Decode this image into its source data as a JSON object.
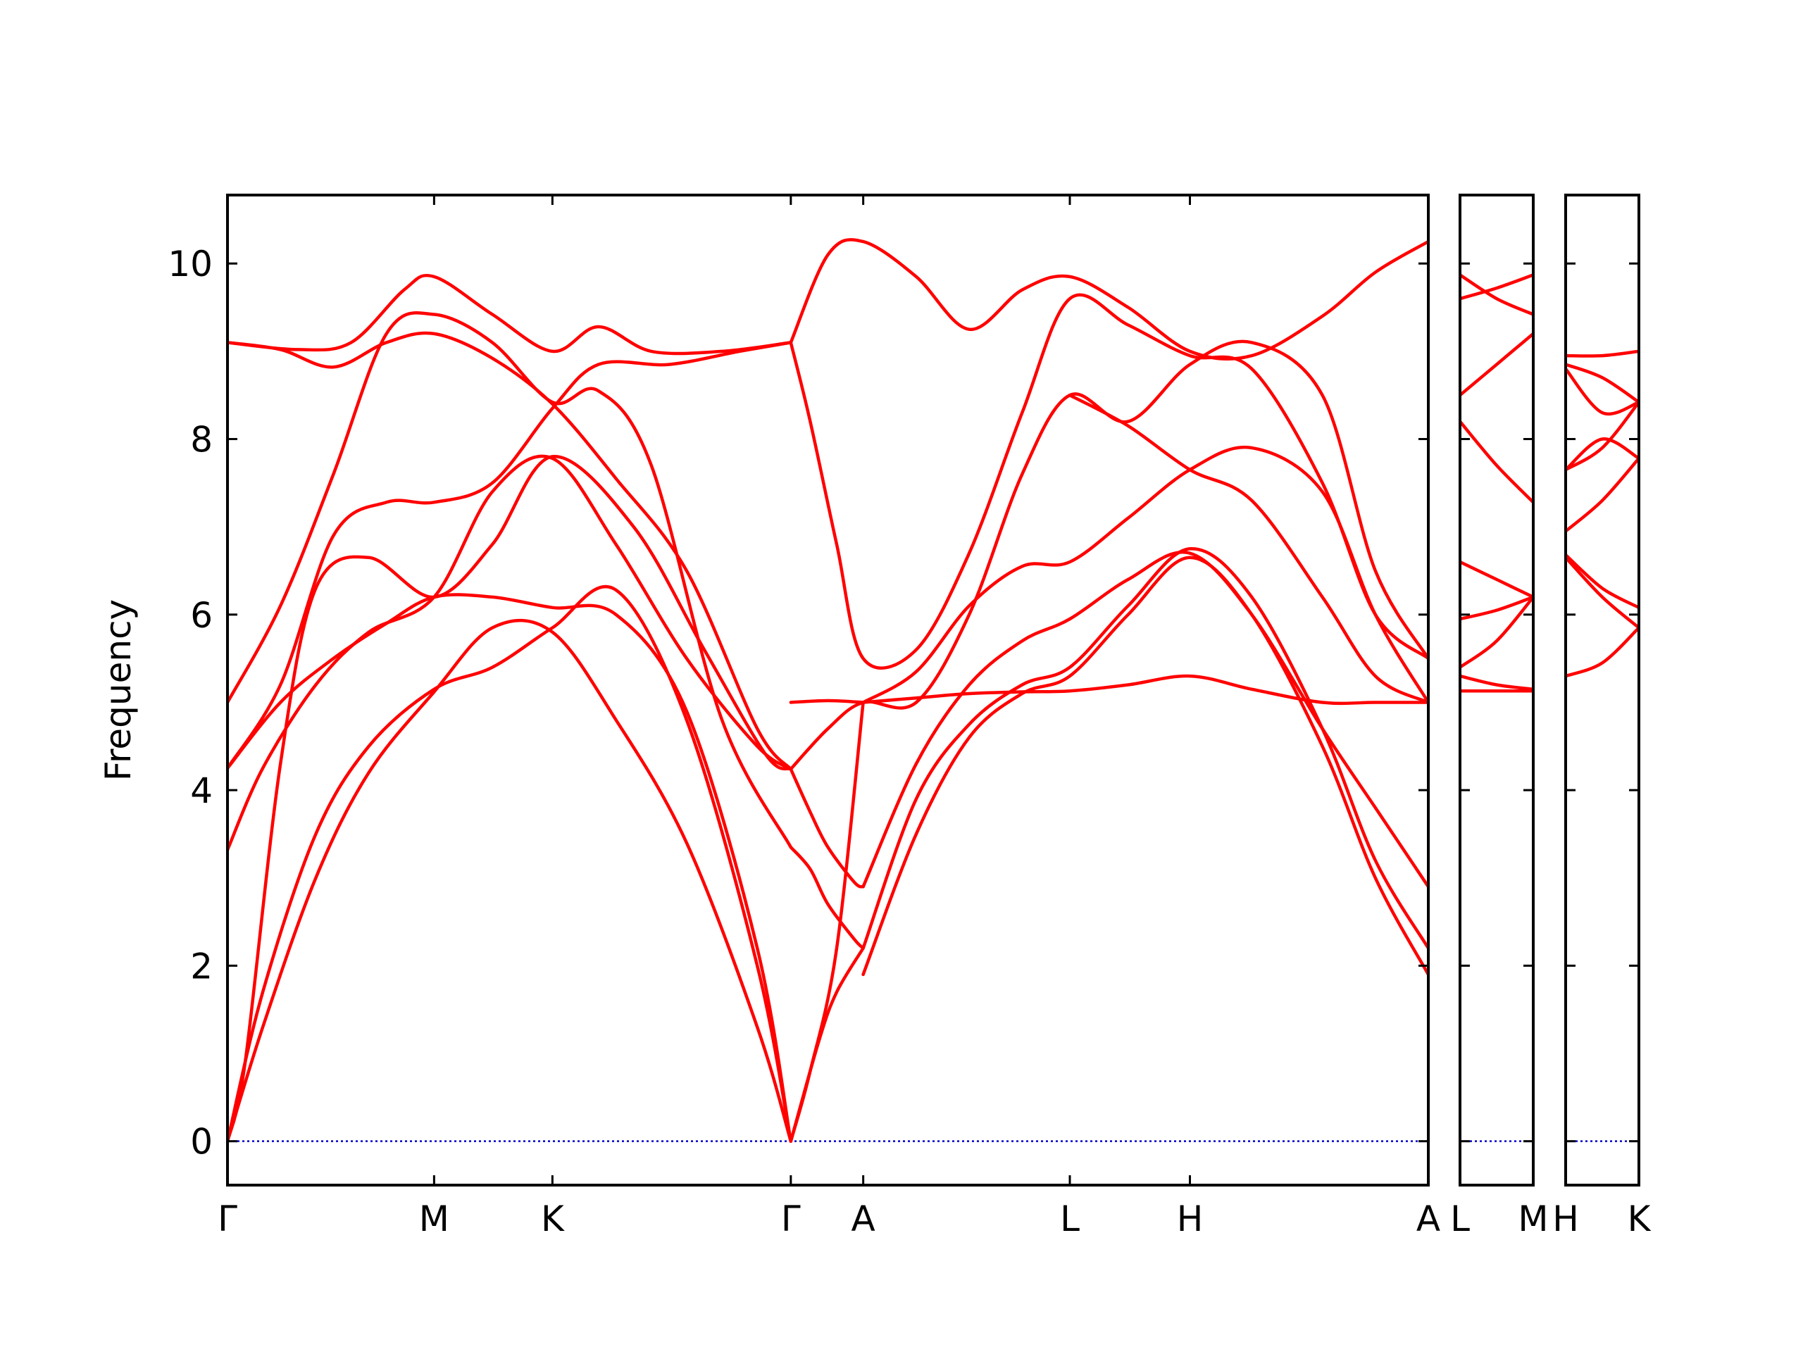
{
  "chart_data": {
    "type": "line",
    "title": "",
    "xlabel": "",
    "ylabel": "Frequency",
    "ylim": [
      -0.5,
      10.78
    ],
    "yticks": [
      0,
      2,
      4,
      6,
      8,
      10
    ],
    "grid": false,
    "legend": "none",
    "colors": {
      "bands": "#ff0000",
      "zero_line": "#0000cc",
      "frame": "#000000"
    },
    "panels": [
      {
        "id": "main",
        "xlim": [
          0,
          6.8
        ],
        "ticks": [
          {
            "label": "Γ",
            "x": 0
          },
          {
            "label": "M",
            "x": 1.17
          },
          {
            "label": "K",
            "x": 1.84
          },
          {
            "label": "Γ",
            "x": 3.19
          },
          {
            "label": "A",
            "x": 3.6
          },
          {
            "label": "L",
            "x": 4.77
          },
          {
            "label": "H",
            "x": 5.45
          },
          {
            "label": "A",
            "x": 6.8
          }
        ],
        "series": [
          {
            "x": [
              0,
              0.3,
              0.6,
              0.9,
              1.17,
              1.5,
              1.84,
              2.2,
              2.6,
              3.0,
              3.19
            ],
            "values": [
              9.1,
              9.02,
              8.82,
              9.1,
              9.2,
              8.92,
              8.4,
              7.55,
              6.5,
              4.7,
              4.24
            ]
          },
          {
            "x": [
              0,
              0.4,
              0.7,
              1.0,
              1.17,
              1.5,
              1.84,
              2.1,
              2.4,
              2.8,
              3.19
            ],
            "values": [
              9.1,
              9.02,
              9.1,
              9.7,
              9.85,
              9.42,
              9.0,
              9.28,
              9.0,
              9.0,
              9.1
            ]
          },
          {
            "x": [
              0,
              0.3,
              0.6,
              0.9,
              1.17,
              1.5,
              1.84,
              2.1,
              2.4,
              2.8,
              3.19
            ],
            "values": [
              5.0,
              6.1,
              7.6,
              9.2,
              9.42,
              9.1,
              8.42,
              8.55,
              7.7,
              4.8,
              3.35
            ]
          },
          {
            "x": [
              0,
              0.3,
              0.6,
              0.9,
              1.17,
              1.5,
              1.84,
              2.1,
              2.5,
              2.9,
              3.19
            ],
            "values": [
              4.25,
              5.2,
              6.9,
              7.28,
              7.28,
              7.5,
              8.35,
              8.85,
              8.85,
              9.0,
              9.1
            ]
          },
          {
            "x": [
              0,
              0.2,
              0.5,
              0.8,
              1.17,
              1.5,
              1.84,
              2.2,
              2.6,
              3.0,
              3.19
            ],
            "values": [
              3.32,
              4.25,
              5.2,
              5.8,
              6.2,
              7.4,
              7.78,
              6.8,
              5.5,
              4.5,
              4.24
            ]
          },
          {
            "x": [
              0,
              0.3,
              0.6,
              0.9,
              1.17,
              1.5,
              1.84,
              2.2,
              2.6,
              3.0,
              3.19
            ],
            "values": [
              4.25,
              5.0,
              5.5,
              5.9,
              6.2,
              6.2,
              6.08,
              6.0,
              4.9,
              2.2,
              0
            ]
          },
          {
            "x": [
              0,
              0.2,
              0.5,
              0.8,
              1.17,
              1.5,
              1.84,
              2.2,
              2.6,
              3.0,
              3.19
            ],
            "values": [
              0,
              1.7,
              3.5,
              4.5,
              5.15,
              5.4,
              5.85,
              6.28,
              4.8,
              2.0,
              0
            ]
          },
          {
            "x": [
              0,
              0.2,
              0.5,
              0.8,
              1.17,
              1.5,
              1.84,
              2.2,
              2.6,
              3.0,
              3.19
            ],
            "values": [
              0,
              1.3,
              3.0,
              4.2,
              5.12,
              5.85,
              5.8,
              4.8,
              3.4,
              1.3,
              0
            ]
          },
          {
            "x": [
              0,
              0.1,
              0.3,
              0.5,
              0.8,
              1.17,
              1.5,
              1.84,
              2.3,
              2.7,
              3.05,
              3.19
            ],
            "values": [
              0,
              0.9,
              4.3,
              6.3,
              6.65,
              6.2,
              6.8,
              7.8,
              7.0,
              5.6,
              4.4,
              4.24
            ]
          },
          {
            "x": [
              3.19,
              3.3,
              3.45,
              3.6,
              3.9,
              4.2,
              4.5,
              4.77,
              5.1,
              5.45,
              5.8,
              6.2,
              6.5,
              6.8
            ],
            "values": [
              9.1,
              8.2,
              6.8,
              5.5,
              5.6,
              6.7,
              8.3,
              9.6,
              9.3,
              8.95,
              8.8,
              7.5,
              6.0,
              5.5
            ]
          },
          {
            "x": [
              3.19,
              3.4,
              3.6,
              3.9,
              4.2,
              4.5,
              4.77,
              5.1,
              5.45,
              5.8,
              6.2,
              6.5,
              6.8
            ],
            "values": [
              9.1,
              10.1,
              10.25,
              9.85,
              9.25,
              9.7,
              9.85,
              9.5,
              9.0,
              8.95,
              9.4,
              9.9,
              10.25
            ]
          },
          {
            "x": [
              3.19,
              3.4,
              3.6,
              3.9,
              4.2,
              4.5,
              4.77,
              5.1,
              5.45,
              5.8,
              6.2,
              6.5,
              6.8
            ],
            "values": [
              4.24,
              4.7,
              5.0,
              5.0,
              6.0,
              7.6,
              8.5,
              8.2,
              8.85,
              9.1,
              8.5,
              6.5,
              5.5
            ]
          },
          {
            "x": [
              3.19,
              3.3,
              3.4,
              3.55,
              3.6
            ],
            "values": [
              4.24,
              3.75,
              3.35,
              2.95,
              2.9
            ]
          },
          {
            "x": [
              3.6,
              3.9,
              4.2,
              4.5,
              4.77,
              5.1,
              5.45,
              5.8,
              6.2,
              6.5,
              6.8
            ],
            "values": [
              2.9,
              4.3,
              5.2,
              5.7,
              5.95,
              6.4,
              6.7,
              6.0,
              4.7,
              3.8,
              2.9
            ]
          },
          {
            "x": [
              3.19,
              3.3,
              3.4,
              3.55,
              3.6
            ],
            "values": [
              3.35,
              3.1,
              2.7,
              2.3,
              2.2
            ]
          },
          {
            "x": [
              3.6,
              3.9,
              4.2,
              4.5,
              4.77,
              5.1,
              5.45,
              5.8,
              6.2,
              6.5,
              6.8
            ],
            "values": [
              2.2,
              3.9,
              4.75,
              5.2,
              5.4,
              6.1,
              6.75,
              6.2,
              4.7,
              3.2,
              2.2
            ]
          },
          {
            "x": [
              3.19,
              3.35,
              3.45,
              3.6
            ],
            "values": [
              0,
              1.15,
              1.7,
              2.2
            ]
          },
          {
            "x": [
              3.6,
              3.9,
              4.2,
              4.5,
              4.77,
              5.1,
              5.45,
              5.8,
              6.2,
              6.5,
              6.8
            ],
            "values": [
              1.9,
              3.5,
              4.6,
              5.1,
              5.3,
              6.0,
              6.65,
              6.0,
              4.5,
              3.0,
              1.9
            ]
          },
          {
            "x": [
              3.19,
              3.3,
              3.45,
              3.6
            ],
            "values": [
              0,
              0.8,
              2.2,
              5.0
            ]
          },
          {
            "x": [
              3.6,
              3.9,
              4.2,
              4.5,
              4.77,
              5.1,
              5.45,
              5.8,
              6.2,
              6.5,
              6.8
            ],
            "values": [
              5.0,
              5.35,
              6.1,
              6.55,
              6.6,
              7.1,
              7.65,
              7.9,
              7.4,
              6.0,
              5.0
            ]
          },
          {
            "x": [
              3.6,
              3.9,
              4.2,
              4.5,
              4.77,
              5.1,
              5.45,
              5.8,
              6.2,
              6.5,
              6.8
            ],
            "values": [
              5.0,
              5.05,
              5.1,
              5.12,
              5.13,
              5.2,
              5.3,
              5.15,
              5.0,
              5.0,
              5.0
            ]
          },
          {
            "x": [
              3.19,
              3.4,
              3.6
            ],
            "values": [
              5.0,
              5.02,
              5.0
            ]
          },
          {
            "x": [
              4.77,
              5.1,
              5.45,
              5.8,
              6.2,
              6.5,
              6.8
            ],
            "values": [
              8.5,
              8.15,
              7.65,
              7.3,
              6.2,
              5.3,
              5.0
            ]
          }
        ]
      },
      {
        "id": "L-M",
        "xlim": [
          0,
          1
        ],
        "ticks": [
          {
            "label": "L",
            "x": 0
          },
          {
            "label": "M",
            "x": 1
          }
        ],
        "series": [
          {
            "x": [
              0,
              0.5,
              1
            ],
            "values": [
              9.87,
              9.6,
              9.42
            ]
          },
          {
            "x": [
              0,
              0.5,
              1
            ],
            "values": [
              9.6,
              9.72,
              9.87
            ]
          },
          {
            "x": [
              0,
              0.5,
              1
            ],
            "values": [
              8.5,
              8.85,
              9.2
            ]
          },
          {
            "x": [
              0,
              0.5,
              1
            ],
            "values": [
              8.2,
              7.7,
              7.28
            ]
          },
          {
            "x": [
              0,
              0.5,
              1
            ],
            "values": [
              6.6,
              6.4,
              6.2
            ]
          },
          {
            "x": [
              0,
              0.5,
              1
            ],
            "values": [
              5.95,
              6.05,
              6.2
            ]
          },
          {
            "x": [
              0,
              0.5,
              1
            ],
            "values": [
              5.4,
              5.7,
              6.2
            ]
          },
          {
            "x": [
              0,
              0.5,
              1
            ],
            "values": [
              5.3,
              5.2,
              5.15
            ]
          },
          {
            "x": [
              0,
              0.5,
              1
            ],
            "values": [
              5.13,
              5.13,
              5.13
            ]
          }
        ]
      },
      {
        "id": "H-K",
        "xlim": [
          0,
          1
        ],
        "ticks": [
          {
            "label": "H",
            "x": 0
          },
          {
            "label": "K",
            "x": 1
          }
        ],
        "series": [
          {
            "x": [
              0,
              0.5,
              1
            ],
            "values": [
              8.95,
              8.95,
              9.0
            ]
          },
          {
            "x": [
              0,
              0.5,
              1
            ],
            "values": [
              8.85,
              8.7,
              8.42
            ]
          },
          {
            "x": [
              0,
              0.5,
              1
            ],
            "values": [
              8.8,
              8.3,
              8.42
            ]
          },
          {
            "x": [
              0,
              0.5,
              1
            ],
            "values": [
              7.65,
              8.0,
              7.78
            ]
          },
          {
            "x": [
              0,
              0.5,
              1
            ],
            "values": [
              7.65,
              7.9,
              8.42
            ]
          },
          {
            "x": [
              0,
              0.5,
              1
            ],
            "values": [
              6.95,
              7.3,
              7.78
            ]
          },
          {
            "x": [
              0,
              0.5,
              1
            ],
            "values": [
              6.68,
              6.3,
              6.08
            ]
          },
          {
            "x": [
              0,
              0.5,
              1
            ],
            "values": [
              6.65,
              6.2,
              5.85
            ]
          },
          {
            "x": [
              0,
              0.5,
              1
            ],
            "values": [
              5.3,
              5.45,
              5.85
            ]
          }
        ]
      }
    ]
  }
}
